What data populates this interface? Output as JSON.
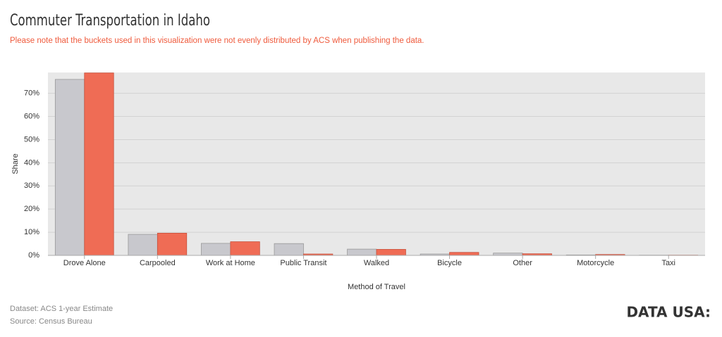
{
  "chart_data": {
    "type": "bar",
    "title": "Commuter Transportation in Idaho",
    "subtitle": "Please note that the buckets used in this visualization were not evenly distributed by ACS when publishing the data.",
    "x_label": "Method of Travel",
    "y_label": "Share",
    "categories": [
      "Drove Alone",
      "Carpooled",
      "Work at Home",
      "Public Transit",
      "Walked",
      "Bicycle",
      "Other",
      "Motorcycle",
      "Taxi"
    ],
    "series": [
      {
        "color": "#c8c8cd",
        "values": [
          76.0,
          9.1,
          5.2,
          5.1,
          2.7,
          0.6,
          1.0,
          0.2,
          0.1
        ]
      },
      {
        "color": "#ef6c55",
        "values": [
          78.8,
          9.6,
          5.9,
          0.6,
          2.6,
          1.3,
          0.7,
          0.4,
          0.1
        ]
      }
    ],
    "ylim": [
      0,
      79
    ],
    "yticks": [
      {
        "value": 0,
        "label": "0%"
      },
      {
        "value": 10,
        "label": "10%"
      },
      {
        "value": 20,
        "label": "20%"
      },
      {
        "value": 30,
        "label": "30%"
      },
      {
        "value": 40,
        "label": "40%"
      },
      {
        "value": 50,
        "label": "50%"
      },
      {
        "value": 60,
        "label": "60%"
      },
      {
        "value": 70,
        "label": "70%"
      }
    ],
    "grid": true,
    "dataset_note": "Dataset: ACS 1-year Estimate",
    "source_note": "Source: Census Bureau",
    "logo": "DATA USA:"
  }
}
